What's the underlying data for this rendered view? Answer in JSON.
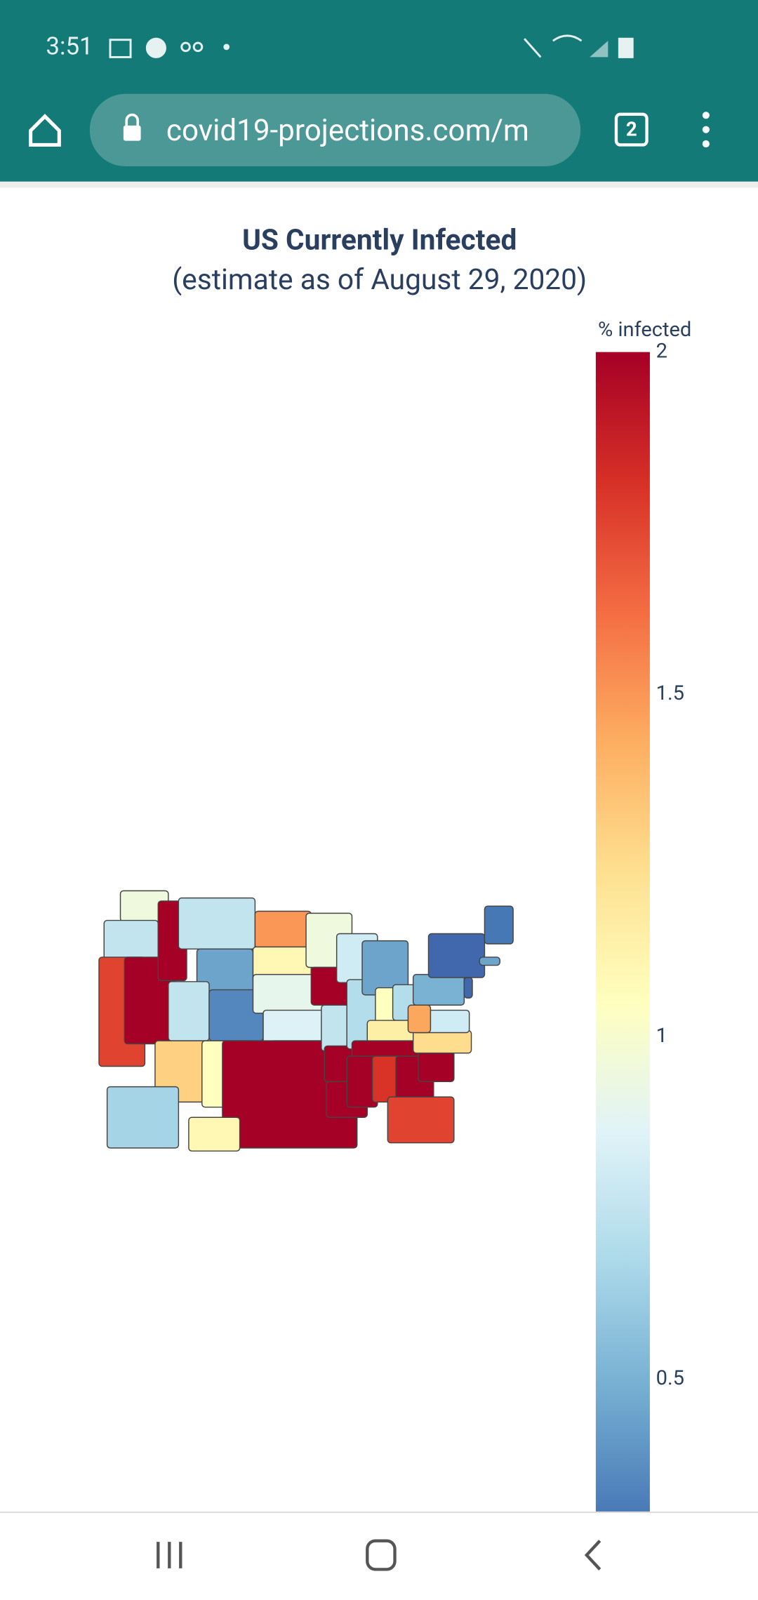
{
  "status_bar": {
    "time": "3:51"
  },
  "browser": {
    "url": "covid19-projections.com/m",
    "tab_count": "2"
  },
  "chart_data": {
    "type": "choropleth",
    "title": "US Currently Infected",
    "subtitle": "(estimate as of August 29, 2020)",
    "colorbar_title": "% infected",
    "zlim": [
      0.1,
      2
    ],
    "zticks": [
      0.5,
      1,
      1.5,
      2
    ],
    "colorscale": [
      "#313695",
      "#4575b4",
      "#74add1",
      "#abd9e9",
      "#e0f3f8",
      "#ffffbf",
      "#fee090",
      "#fdae61",
      "#f46d43",
      "#d73027",
      "#a50026"
    ],
    "values": [
      0.95,
      0.75,
      1.75,
      2,
      2,
      0.75,
      0.45,
      0.75,
      0.35,
      1.3,
      1.05,
      1.5,
      1.1,
      0.9,
      0.85,
      1.65,
      2,
      0.95,
      2,
      0.75,
      2,
      2,
      0.8,
      0.7,
      0.45,
      1.05,
      0.7,
      1.15,
      2,
      2,
      1.8,
      2,
      1.75,
      2,
      1.25,
      0.8,
      1.45,
      0.5,
      0.25,
      0.3,
      0.25,
      0.45,
      0.65,
      1.1
    ]
  }
}
